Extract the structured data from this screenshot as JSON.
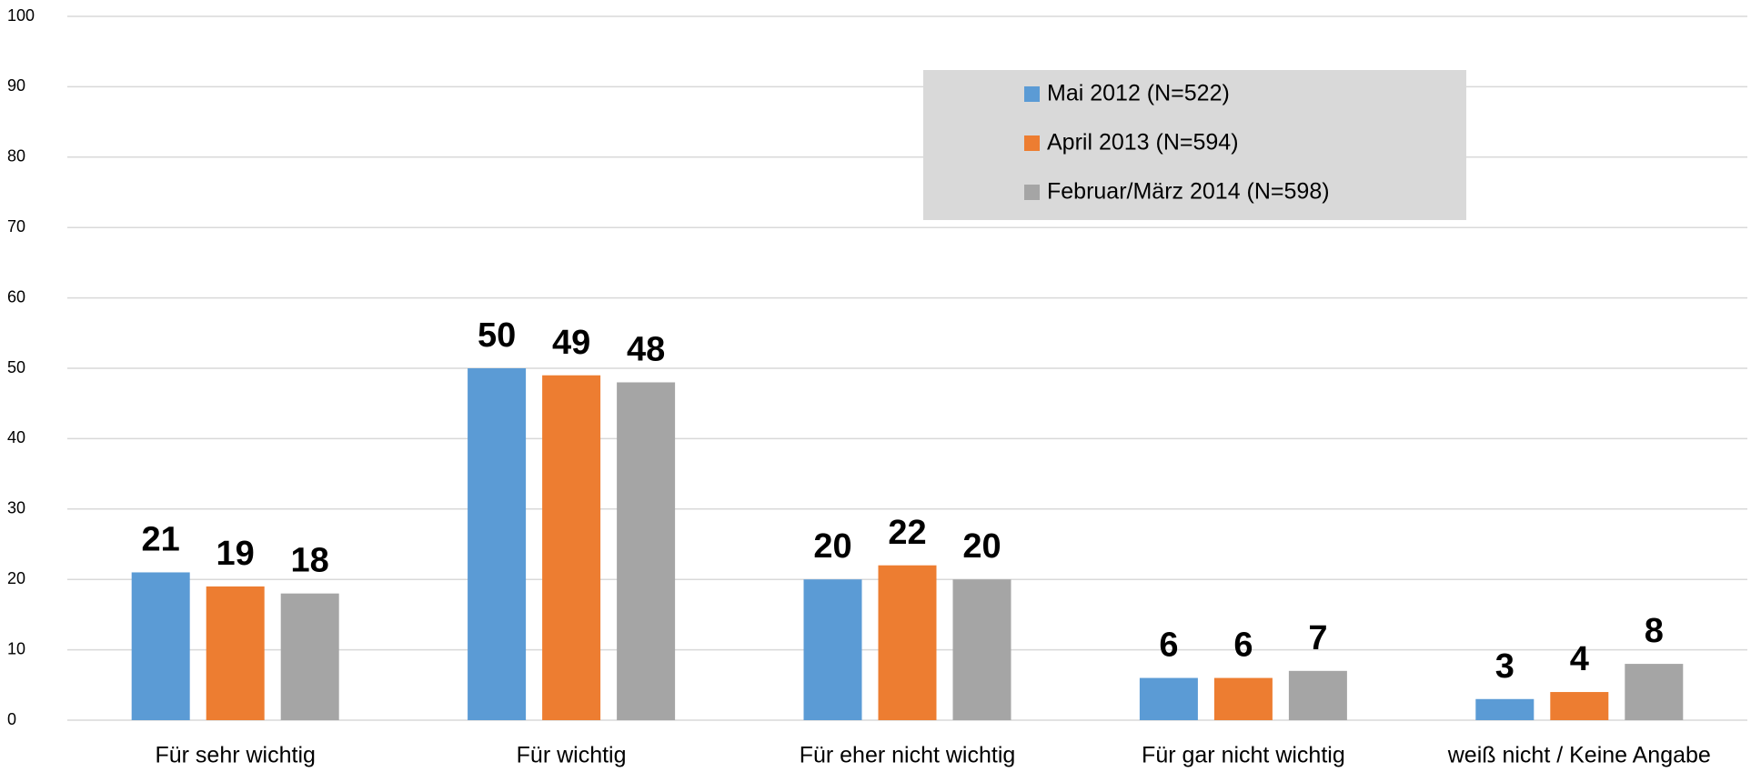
{
  "chart_data": {
    "type": "bar",
    "categories": [
      "Für sehr wichtig",
      "Für wichtig",
      "Für eher nicht wichtig",
      "Für gar nicht wichtig",
      "weiß nicht / Keine Angabe"
    ],
    "series": [
      {
        "name": "Mai 2012 (N=522)",
        "color": "#5b9bd5",
        "values": [
          21,
          50,
          20,
          6,
          3
        ]
      },
      {
        "name": "April 2013 (N=594)",
        "color": "#ed7d31",
        "values": [
          19,
          49,
          22,
          6,
          4
        ]
      },
      {
        "name": "Februar/März 2014 (N=598)",
        "color": "#a5a5a5",
        "values": [
          18,
          48,
          20,
          7,
          8
        ]
      }
    ],
    "ylim": [
      0,
      100
    ],
    "yticks": [
      0,
      10,
      20,
      30,
      40,
      50,
      60,
      70,
      80,
      90,
      100
    ],
    "grid": true,
    "legend": "top-right"
  }
}
